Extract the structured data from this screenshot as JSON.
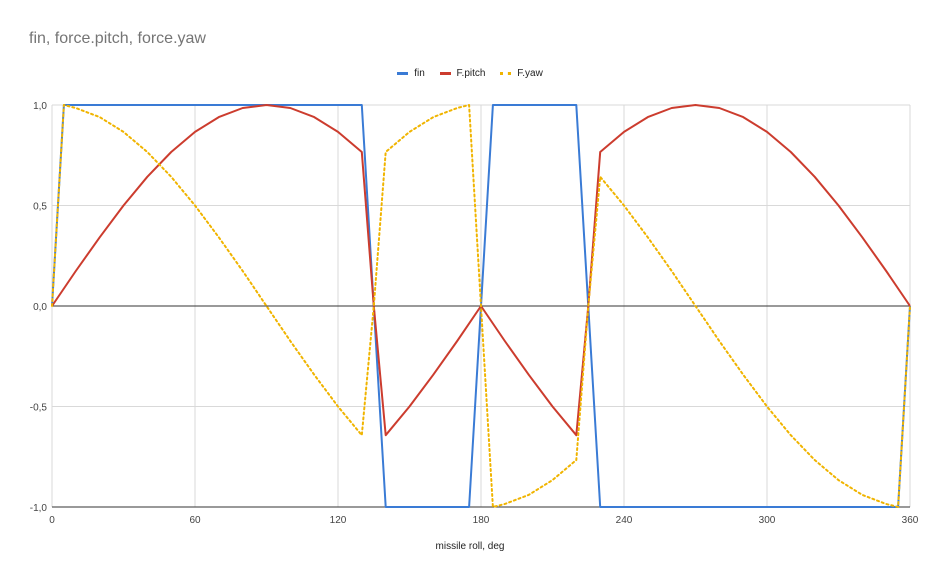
{
  "chart_data": {
    "type": "line",
    "title": "fin, force.pitch, force.yaw",
    "xlabel": "missile roll, deg",
    "ylabel": "",
    "xlim": [
      0,
      360
    ],
    "ylim": [
      -1,
      1
    ],
    "x_ticks": [
      "0",
      "60",
      "120",
      "180",
      "240",
      "300",
      "360"
    ],
    "y_ticks": [
      "1,0",
      "0,5",
      "0,0",
      "-0,5",
      "-1,0"
    ],
    "grid": true,
    "legend_position": "top",
    "series": [
      {
        "name": "fin",
        "color": "#3a7bd5",
        "style": "solid",
        "points": [
          [
            0,
            0
          ],
          [
            5,
            1
          ],
          [
            130,
            1
          ],
          [
            140,
            -1
          ],
          [
            175,
            -1
          ],
          [
            180,
            0
          ],
          [
            185,
            1
          ],
          [
            220,
            1
          ],
          [
            230,
            -1
          ],
          [
            355,
            -1
          ],
          [
            360,
            0
          ]
        ]
      },
      {
        "name": "F.pitch",
        "color": "#cc3c2e",
        "style": "solid",
        "points": [
          [
            0,
            0
          ],
          [
            10,
            0.174
          ],
          [
            20,
            0.342
          ],
          [
            30,
            0.5
          ],
          [
            40,
            0.643
          ],
          [
            50,
            0.766
          ],
          [
            60,
            0.866
          ],
          [
            70,
            0.94
          ],
          [
            80,
            0.985
          ],
          [
            90,
            1
          ],
          [
            100,
            0.985
          ],
          [
            110,
            0.94
          ],
          [
            120,
            0.866
          ],
          [
            130,
            0.766
          ],
          [
            135,
            0
          ],
          [
            140,
            -0.643
          ],
          [
            150,
            -0.5
          ],
          [
            160,
            -0.342
          ],
          [
            170,
            -0.174
          ],
          [
            180,
            0
          ],
          [
            190,
            -0.174
          ],
          [
            200,
            -0.342
          ],
          [
            210,
            -0.5
          ],
          [
            220,
            -0.643
          ],
          [
            225,
            0
          ],
          [
            230,
            0.766
          ],
          [
            240,
            0.866
          ],
          [
            250,
            0.94
          ],
          [
            260,
            0.985
          ],
          [
            270,
            1
          ],
          [
            280,
            0.985
          ],
          [
            290,
            0.94
          ],
          [
            300,
            0.866
          ],
          [
            310,
            0.766
          ],
          [
            320,
            0.643
          ],
          [
            330,
            0.5
          ],
          [
            340,
            0.342
          ],
          [
            350,
            0.174
          ],
          [
            360,
            0
          ]
        ]
      },
      {
        "name": "F.yaw",
        "color": "#f0b400",
        "style": "dotted",
        "points": [
          [
            0,
            0
          ],
          [
            5,
            1
          ],
          [
            10,
            0.985
          ],
          [
            20,
            0.94
          ],
          [
            30,
            0.866
          ],
          [
            40,
            0.766
          ],
          [
            50,
            0.643
          ],
          [
            60,
            0.5
          ],
          [
            70,
            0.342
          ],
          [
            80,
            0.174
          ],
          [
            90,
            0
          ],
          [
            100,
            -0.174
          ],
          [
            110,
            -0.342
          ],
          [
            120,
            -0.5
          ],
          [
            130,
            -0.643
          ],
          [
            135,
            0
          ],
          [
            140,
            0.766
          ],
          [
            150,
            0.866
          ],
          [
            160,
            0.94
          ],
          [
            170,
            0.985
          ],
          [
            175,
            1
          ],
          [
            180,
            0
          ],
          [
            185,
            -1
          ],
          [
            190,
            -0.985
          ],
          [
            200,
            -0.94
          ],
          [
            210,
            -0.866
          ],
          [
            220,
            -0.766
          ],
          [
            225,
            0
          ],
          [
            230,
            0.643
          ],
          [
            240,
            0.5
          ],
          [
            250,
            0.342
          ],
          [
            260,
            0.174
          ],
          [
            270,
            0
          ],
          [
            280,
            -0.174
          ],
          [
            290,
            -0.342
          ],
          [
            300,
            -0.5
          ],
          [
            310,
            -0.643
          ],
          [
            320,
            -0.766
          ],
          [
            330,
            -0.866
          ],
          [
            340,
            -0.94
          ],
          [
            350,
            -0.985
          ],
          [
            355,
            -1
          ],
          [
            360,
            0
          ]
        ]
      }
    ]
  }
}
